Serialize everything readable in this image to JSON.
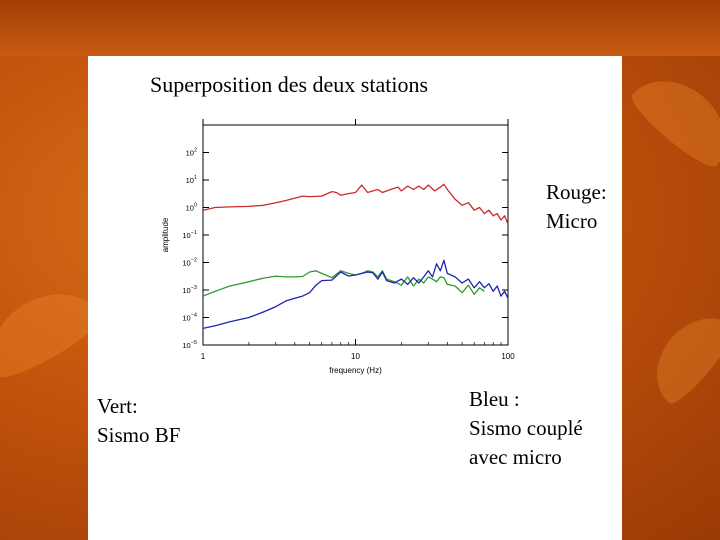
{
  "slide": {
    "title": "Superposition des deux stations",
    "label_red": [
      "Rouge:",
      "Micro"
    ],
    "label_green": [
      "Vert:",
      "Sismo BF"
    ],
    "label_blue": [
      "Bleu :",
      "Sismo couplé",
      "avec micro"
    ]
  },
  "colors": {
    "red": "#cc2a2a",
    "green": "#2e9a2e",
    "blue": "#1f25b0"
  },
  "chart_data": {
    "type": "line",
    "title": "",
    "xlabel": "frequency (Hz)",
    "ylabel": "amplitude",
    "xscale": "log",
    "yscale": "log",
    "xlim": [
      1,
      100
    ],
    "ylim": [
      1e-05,
      1000
    ],
    "xticks": [
      {
        "value": 1,
        "label": "1"
      },
      {
        "value": 10,
        "label": "10"
      },
      {
        "value": 100,
        "label": "100"
      }
    ],
    "yticks": [
      {
        "exp": 2,
        "label": "10",
        "sup": "2"
      },
      {
        "exp": 1,
        "label": "10",
        "sup": "1"
      },
      {
        "exp": 0,
        "label": "10",
        "sup": "0"
      },
      {
        "exp": -1,
        "label": "10",
        "sup": "−1"
      },
      {
        "exp": -2,
        "label": "10",
        "sup": "−2"
      },
      {
        "exp": -3,
        "label": "10",
        "sup": "−3"
      },
      {
        "exp": -4,
        "label": "10",
        "sup": "−4"
      },
      {
        "exp": -5,
        "label": "10",
        "sup": "−5"
      }
    ],
    "grid": false,
    "series": [
      {
        "color": "red",
        "x": [
          1,
          1.2,
          1.5,
          2,
          2.5,
          3,
          3.5,
          4,
          4.5,
          5,
          6,
          7,
          7.5,
          8,
          9,
          10,
          11,
          12,
          13,
          14,
          15,
          17,
          19,
          20,
          22,
          24,
          26,
          28,
          30,
          33,
          36,
          38,
          40,
          45,
          50,
          55,
          60,
          65,
          70,
          75,
          80,
          85,
          90,
          95,
          100
        ],
        "y": [
          0.8,
          1.0,
          1.05,
          1.1,
          1.2,
          1.5,
          1.8,
          2.2,
          2.6,
          2.5,
          2.6,
          3.8,
          3.5,
          2.8,
          3.2,
          3.5,
          6.5,
          3.5,
          4.0,
          4.5,
          3.5,
          4.5,
          5.5,
          4.0,
          6.0,
          4.5,
          6.0,
          4.5,
          6.5,
          4.0,
          5.5,
          7.0,
          4.5,
          2.0,
          1.2,
          1.5,
          0.8,
          1.0,
          0.6,
          0.8,
          0.5,
          0.6,
          0.35,
          0.5,
          0.25
        ]
      },
      {
        "color": "green",
        "x": [
          1,
          1.2,
          1.5,
          2,
          2.5,
          3,
          3.5,
          4,
          4.5,
          5,
          5.5,
          6,
          7,
          8,
          9,
          10,
          11,
          12,
          13,
          14,
          15,
          16,
          18,
          20,
          22,
          24,
          26,
          28,
          30,
          32,
          34,
          36,
          38,
          40,
          45,
          50,
          55,
          60,
          65,
          70
        ],
        "y": [
          0.0006,
          0.0009,
          0.0014,
          0.002,
          0.0027,
          0.0032,
          0.003,
          0.003,
          0.0031,
          0.0045,
          0.005,
          0.004,
          0.0028,
          0.005,
          0.004,
          0.0035,
          0.004,
          0.005,
          0.0045,
          0.003,
          0.005,
          0.0025,
          0.002,
          0.0015,
          0.003,
          0.0014,
          0.0025,
          0.0018,
          0.003,
          0.0025,
          0.002,
          0.003,
          0.0028,
          0.0016,
          0.0014,
          0.0008,
          0.0015,
          0.0007,
          0.0012,
          0.0009
        ]
      },
      {
        "color": "blue",
        "x": [
          1,
          1.2,
          1.5,
          2,
          2.5,
          3,
          3.5,
          4,
          4.5,
          5,
          5.5,
          6,
          7,
          8,
          9,
          10,
          11,
          12,
          13,
          14,
          15,
          16,
          18,
          20,
          22,
          24,
          26,
          28,
          30,
          32,
          34,
          36,
          38,
          40,
          45,
          50,
          55,
          60,
          65,
          70,
          75,
          80,
          85,
          90,
          95,
          100
        ],
        "y": [
          4e-05,
          5e-05,
          7e-05,
          0.0001,
          0.00016,
          0.00025,
          0.0004,
          0.0005,
          0.0006,
          0.0008,
          0.0015,
          0.0022,
          0.0023,
          0.0045,
          0.0032,
          0.0035,
          0.004,
          0.0045,
          0.0042,
          0.0025,
          0.0045,
          0.0022,
          0.0018,
          0.0025,
          0.0016,
          0.0028,
          0.0018,
          0.003,
          0.005,
          0.003,
          0.009,
          0.005,
          0.012,
          0.004,
          0.003,
          0.0018,
          0.0025,
          0.0012,
          0.002,
          0.0012,
          0.0017,
          0.0009,
          0.0014,
          0.0006,
          0.0009,
          0.0005
        ]
      }
    ]
  }
}
